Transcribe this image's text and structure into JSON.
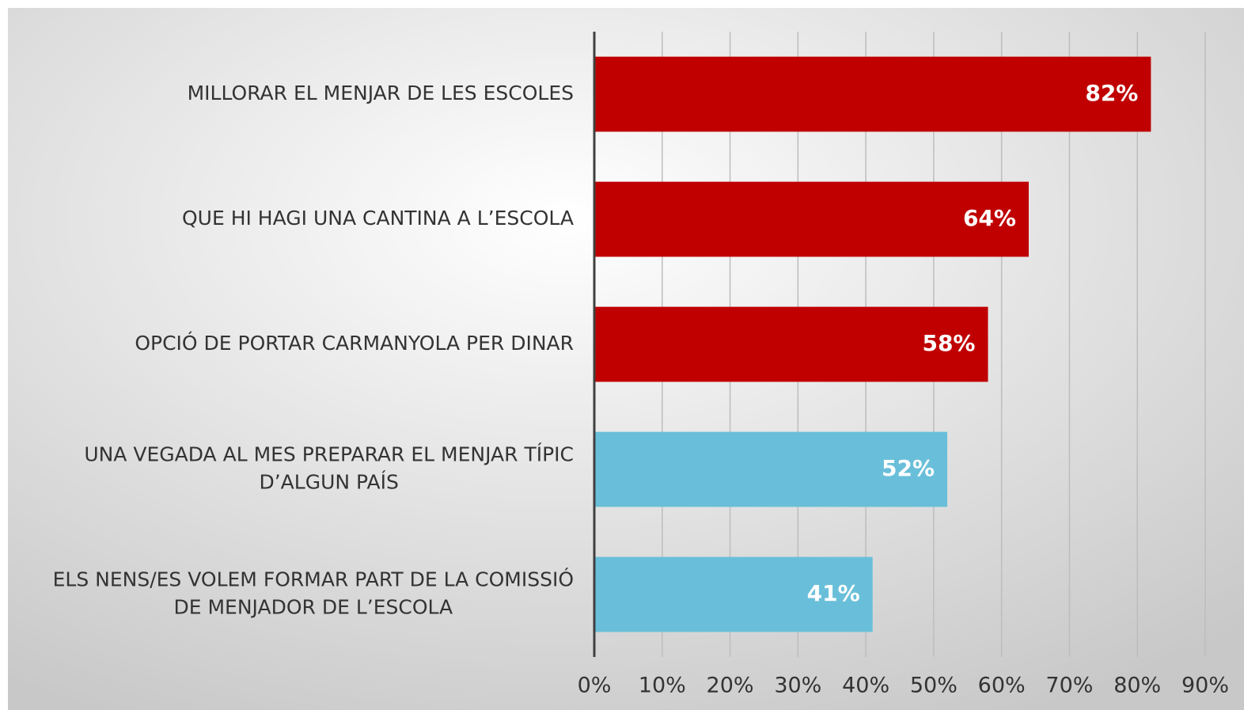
{
  "chart_data": {
    "type": "bar",
    "orientation": "horizontal",
    "categories": [
      [
        "MILLORAR EL MENJAR DE LES ESCOLES"
      ],
      [
        "QUE HI HAGI UNA CANTINA A L’ESCOLA"
      ],
      [
        "OPCIÓ DE PORTAR CARMANYOLA PER DINAR"
      ],
      [
        "UNA VEGADA AL MES PREPARAR EL MENJAR TÍPIC",
        "D’ALGUN PAÍS"
      ],
      [
        "ELS NENS/ES VOLEM FORMAR PART DE LA COMISSIÓ",
        "DE MENJADOR DE L’ESCOLA"
      ]
    ],
    "values": [
      82,
      64,
      58,
      52,
      41
    ],
    "value_labels": [
      "82%",
      "64%",
      "58%",
      "52%",
      "41%"
    ],
    "colors": [
      "#c00000",
      "#c00000",
      "#c00000",
      "#69bfd9",
      "#69bfd9"
    ],
    "xlim": [
      0,
      90
    ],
    "xticks": [
      {
        "value": 0,
        "label": "0%"
      },
      {
        "value": 10,
        "label": "10%"
      },
      {
        "value": 20,
        "label": "20%"
      },
      {
        "value": 30,
        "label": "30%"
      },
      {
        "value": 40,
        "label": "40%"
      },
      {
        "value": 50,
        "label": "50%"
      },
      {
        "value": 60,
        "label": "60%"
      },
      {
        "value": 70,
        "label": "70%"
      },
      {
        "value": 80,
        "label": "80%"
      },
      {
        "value": 90,
        "label": "90%"
      }
    ],
    "grid": true
  }
}
